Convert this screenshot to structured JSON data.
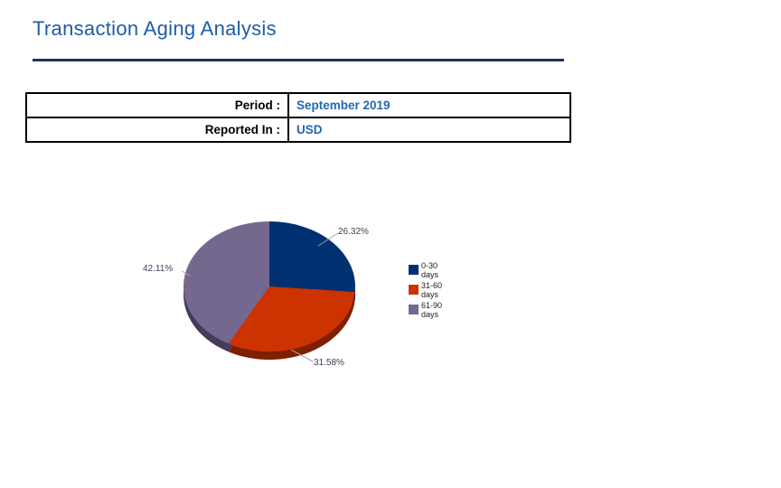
{
  "page": {
    "title": "Transaction Aging Analysis"
  },
  "report_info": {
    "rows": [
      {
        "label": "Period :",
        "value": "September 2019"
      },
      {
        "label": "Reported In :",
        "value": "USD"
      }
    ]
  },
  "chart_data": {
    "type": "pie",
    "style": "3d",
    "title": "",
    "categories": [
      "0-30 days",
      "31-60 days",
      "61-90 days"
    ],
    "values": [
      26.32,
      31.58,
      42.11
    ],
    "labels": [
      "26.32%",
      "31.58%",
      "42.11%"
    ],
    "colors": [
      "#003070",
      "#cc3300",
      "#75688f"
    ],
    "depth_colors": [
      "#001a44",
      "#7e1f00",
      "#453c5a"
    ],
    "start_angle": "top",
    "direction": "clockwise",
    "legend_position": "right",
    "legend": [
      {
        "line1": "0-30",
        "line2": "days"
      },
      {
        "line1": "31-60",
        "line2": "days"
      },
      {
        "line1": "61-90",
        "line2": "days"
      }
    ]
  },
  "colors": {
    "title": "#1c5da6",
    "value_text": "#2368b0",
    "rule": "#17365d",
    "table_border": "#000000",
    "percent_label": "#3e3e52",
    "callout_line": "#a0a4ad"
  }
}
